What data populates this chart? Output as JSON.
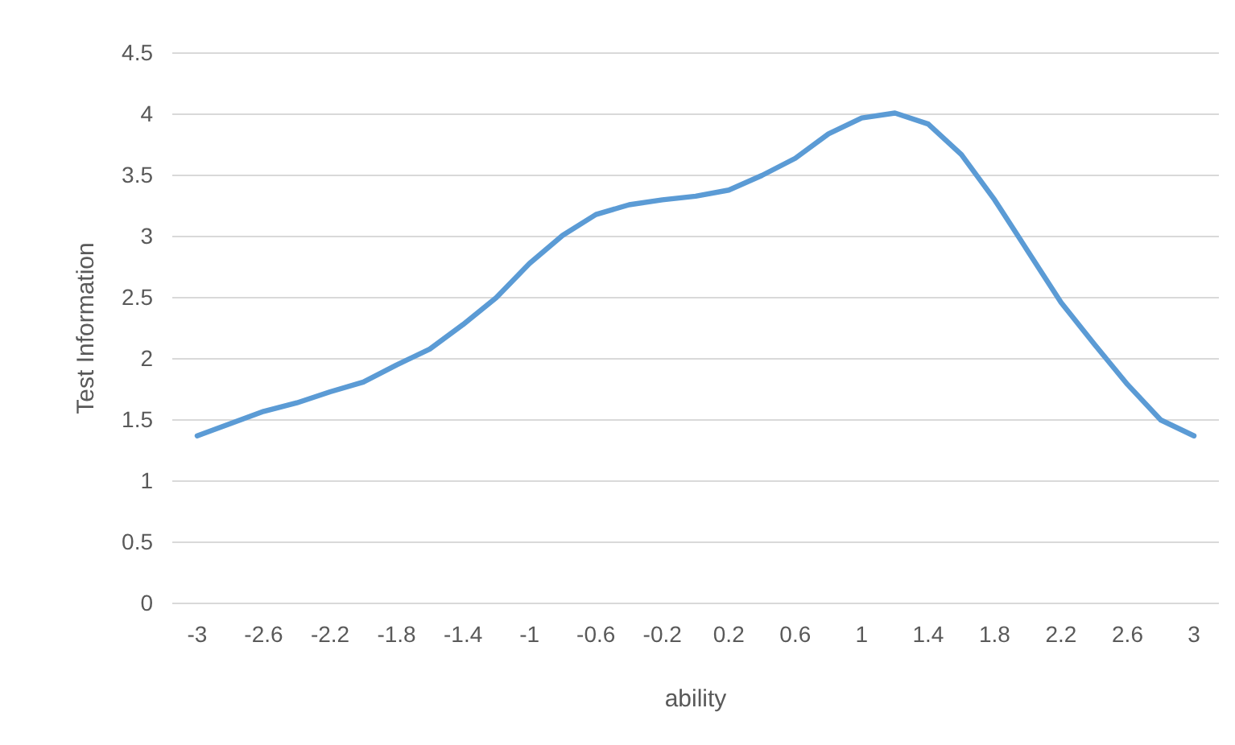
{
  "chart_data": {
    "type": "line",
    "xlabel": "ability",
    "ylabel": "Test Information",
    "x": [
      -3,
      -2.8,
      -2.6,
      -2.4,
      -2.2,
      -2,
      -1.8,
      -1.6,
      -1.4,
      -1.2,
      -1,
      -0.8,
      -0.6,
      -0.4,
      -0.2,
      0,
      0.2,
      0.4,
      0.6,
      0.8,
      1,
      1.2,
      1.4,
      1.6,
      1.8,
      2,
      2.2,
      2.4,
      2.6,
      2.8,
      3
    ],
    "series": [
      {
        "color": "#5b9bd5",
        "values": [
          1.37,
          1.47,
          1.57,
          1.64,
          1.73,
          1.81,
          1.95,
          2.08,
          2.28,
          2.5,
          2.78,
          3.01,
          3.18,
          3.26,
          3.3,
          3.33,
          3.38,
          3.5,
          3.64,
          3.84,
          3.97,
          4.01,
          3.92,
          3.67,
          3.3,
          2.88,
          2.46,
          2.12,
          1.79,
          1.5,
          1.37
        ]
      }
    ],
    "xlim": [
      -3.15,
      3.15
    ],
    "xticks": [
      -3,
      -2.6,
      -2.2,
      -1.8,
      -1.4,
      -1,
      -0.6,
      -0.2,
      0.2,
      0.6,
      1,
      1.4,
      1.8,
      2.2,
      2.6,
      3
    ],
    "ylim": [
      0,
      4.5
    ],
    "yticks": [
      0,
      0.5,
      1,
      1.5,
      2,
      2.5,
      3,
      3.5,
      4,
      4.5
    ],
    "grid": "y",
    "marker": "none",
    "line_style": "solid"
  }
}
